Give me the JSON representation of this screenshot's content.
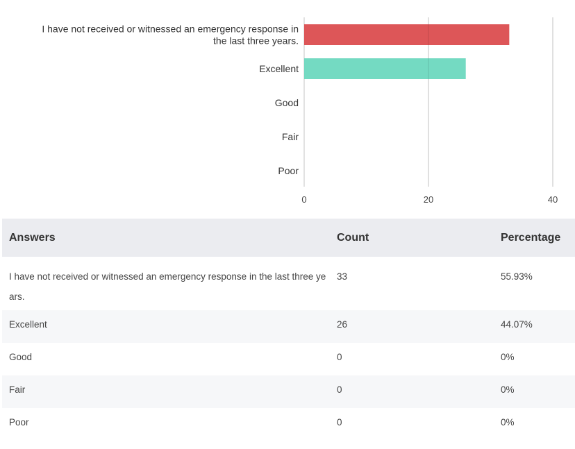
{
  "chart_data": {
    "type": "bar",
    "orientation": "horizontal",
    "categories": [
      "I have not received or witnessed an emergency response in the last three years.",
      "Excellent",
      "Good",
      "Fair",
      "Poor"
    ],
    "values": [
      33,
      26,
      0,
      0,
      0
    ],
    "bar_colors": [
      "#db4d4f",
      "#6dd8bf",
      "#db4d4f",
      "#db4d4f",
      "#db4d4f"
    ],
    "xlim": [
      0,
      40
    ],
    "xticks": [
      "0",
      "20",
      "40"
    ],
    "grid": true,
    "title": "",
    "xlabel": "",
    "ylabel": ""
  },
  "table": {
    "headers": {
      "answer": "Answers",
      "count": "Count",
      "percentage": "Percentage"
    },
    "rows": [
      {
        "answer": "I have not received or witnessed an emergency response in the last three years.",
        "count": "33",
        "percentage": "55.93%"
      },
      {
        "answer": "Excellent",
        "count": "26",
        "percentage": "44.07%"
      },
      {
        "answer": "Good",
        "count": "0",
        "percentage": "0%"
      },
      {
        "answer": "Fair",
        "count": "0",
        "percentage": "0%"
      },
      {
        "answer": "Poor",
        "count": "0",
        "percentage": "0%"
      }
    ]
  }
}
